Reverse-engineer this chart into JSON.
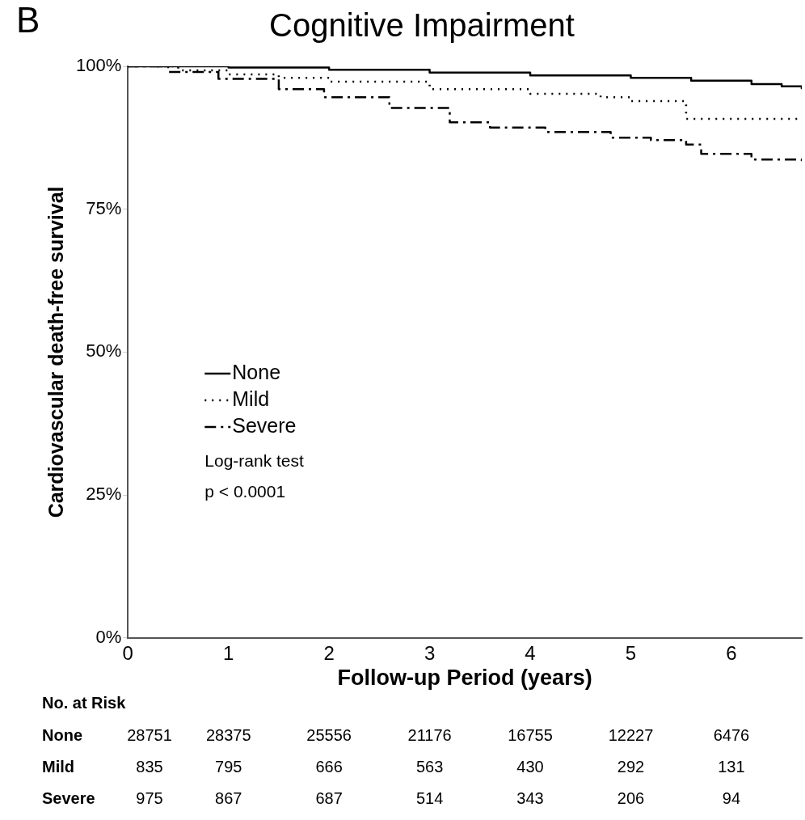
{
  "chart_data": {
    "type": "step",
    "title": "Cognitive Impairment",
    "xlabel": "Follow-up Period (years)",
    "ylabel": "Cardiovascular death-free survival",
    "xlim": [
      0,
      6.7
    ],
    "xticks": [
      0,
      1,
      2,
      3,
      4,
      5,
      6
    ],
    "ylim": [
      0,
      100
    ],
    "yticks": [
      {
        "value": 0,
        "label": "0%"
      },
      {
        "value": 25,
        "label": "25%"
      },
      {
        "value": 50,
        "label": "50%"
      },
      {
        "value": 75,
        "label": "75%"
      },
      {
        "value": 100,
        "label": "100%"
      }
    ],
    "grid": false,
    "legend": "left",
    "marker": "none",
    "series": [
      {
        "name": "None",
        "color": "#000000",
        "line_style": "solid",
        "x": [
          0,
          1,
          2,
          3,
          4,
          5,
          5.6,
          6.2,
          6.5,
          6.7
        ],
        "values": [
          100,
          99.8,
          99.4,
          98.9,
          98.4,
          98,
          97.5,
          96.9,
          96.5,
          96
        ]
      },
      {
        "name": "Mild",
        "color": "#000000",
        "line_style": "dotted",
        "x": [
          0,
          0.5,
          1,
          1.5,
          2,
          3,
          4,
          4.7,
          5,
          5.55,
          6.7
        ],
        "values": [
          100,
          99.3,
          98.6,
          98,
          97.3,
          96,
          95.2,
          94.6,
          93.9,
          90.8,
          90.8
        ]
      },
      {
        "name": "Severe",
        "color": "#000000",
        "line_style": "dashed",
        "x": [
          0,
          0.4,
          0.9,
          1.5,
          1.95,
          2.6,
          3.2,
          3.6,
          4.15,
          4.8,
          5.2,
          5.55,
          5.7,
          6.2,
          6.7
        ],
        "values": [
          100,
          99,
          97.8,
          96,
          94.6,
          92.7,
          90.2,
          89.3,
          88.5,
          87.5,
          87.1,
          86.3,
          84.7,
          83.7,
          83.2
        ]
      }
    ],
    "annotations": [
      "B",
      "Log-rank test",
      "p < 0.0001",
      "No. at Risk",
      "None",
      "28751",
      "28375",
      "25556",
      "21176",
      "16755",
      "12227",
      "6476",
      "Mild",
      "835",
      "795",
      "666",
      "563",
      "430",
      "292",
      "131",
      "Severe",
      "975",
      "867",
      "687",
      "514",
      "343",
      "206",
      "94"
    ]
  }
}
